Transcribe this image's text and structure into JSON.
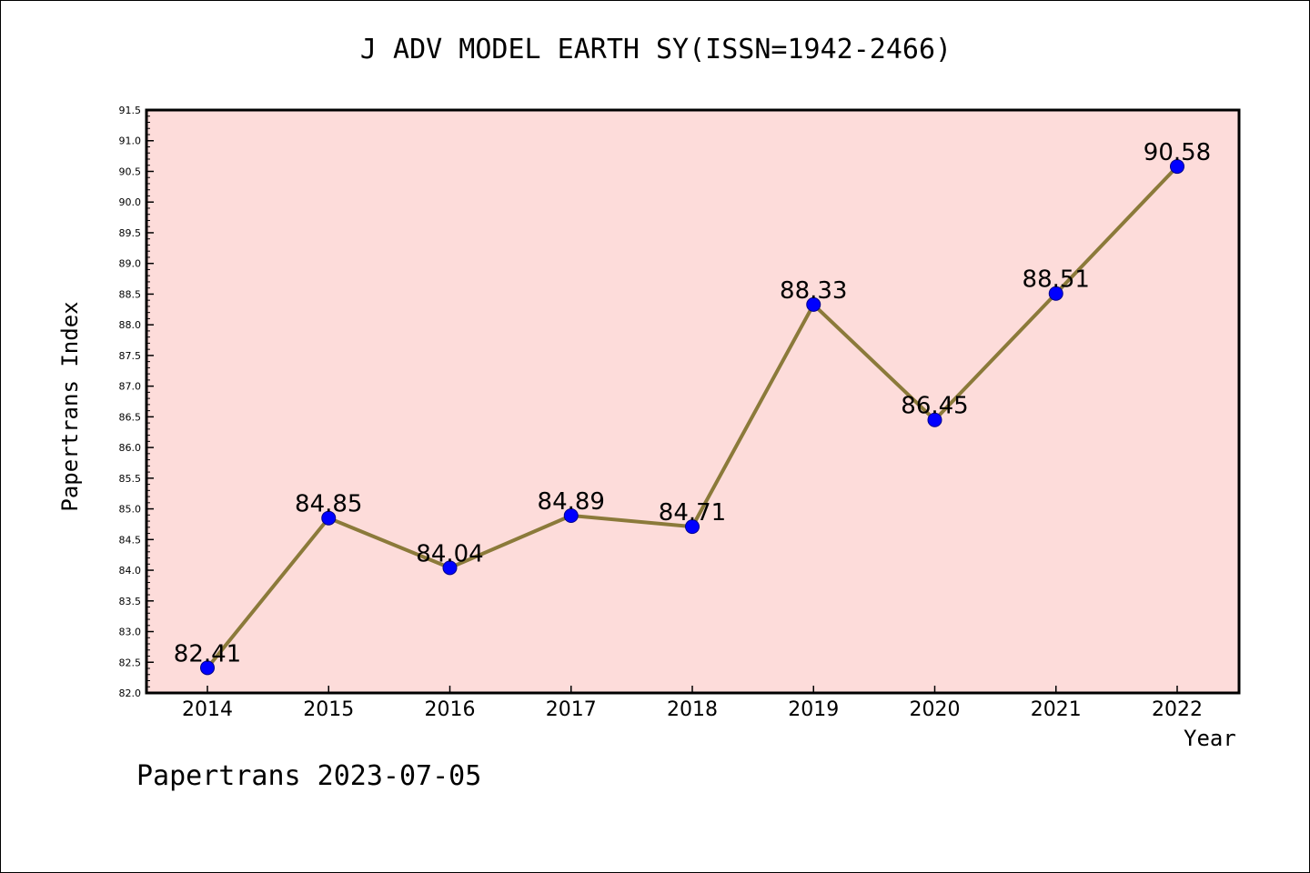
{
  "title": "J ADV MODEL EARTH SY(ISSN=1942-2466)",
  "footer": "Papertrans 2023-07-05",
  "colors": {
    "plot_background": "#fddcda",
    "line": "#8b7a3a",
    "marker": "#0000ff"
  },
  "chart_data": {
    "type": "line",
    "xlabel": "Year",
    "ylabel": "Papertrans Index",
    "ylim": [
      82.0,
      91.5
    ],
    "yticks": [
      "82.0",
      "82.5",
      "83.0",
      "83.5",
      "84.0",
      "84.5",
      "85.0",
      "85.5",
      "86.0",
      "86.5",
      "87.0",
      "87.5",
      "88.0",
      "88.5",
      "89.0",
      "89.5",
      "90.0",
      "90.5",
      "91.0",
      "91.5"
    ],
    "categories": [
      "2014",
      "2015",
      "2016",
      "2017",
      "2018",
      "2019",
      "2020",
      "2021",
      "2022"
    ],
    "values": [
      82.41,
      84.85,
      84.04,
      84.89,
      84.71,
      88.33,
      86.45,
      88.51,
      90.58
    ],
    "labels": [
      "82.41",
      "84.85",
      "84.04",
      "84.89",
      "84.71",
      "88.33",
      "86.45",
      "88.51",
      "90.58"
    ],
    "grid": false,
    "legend": "none"
  }
}
